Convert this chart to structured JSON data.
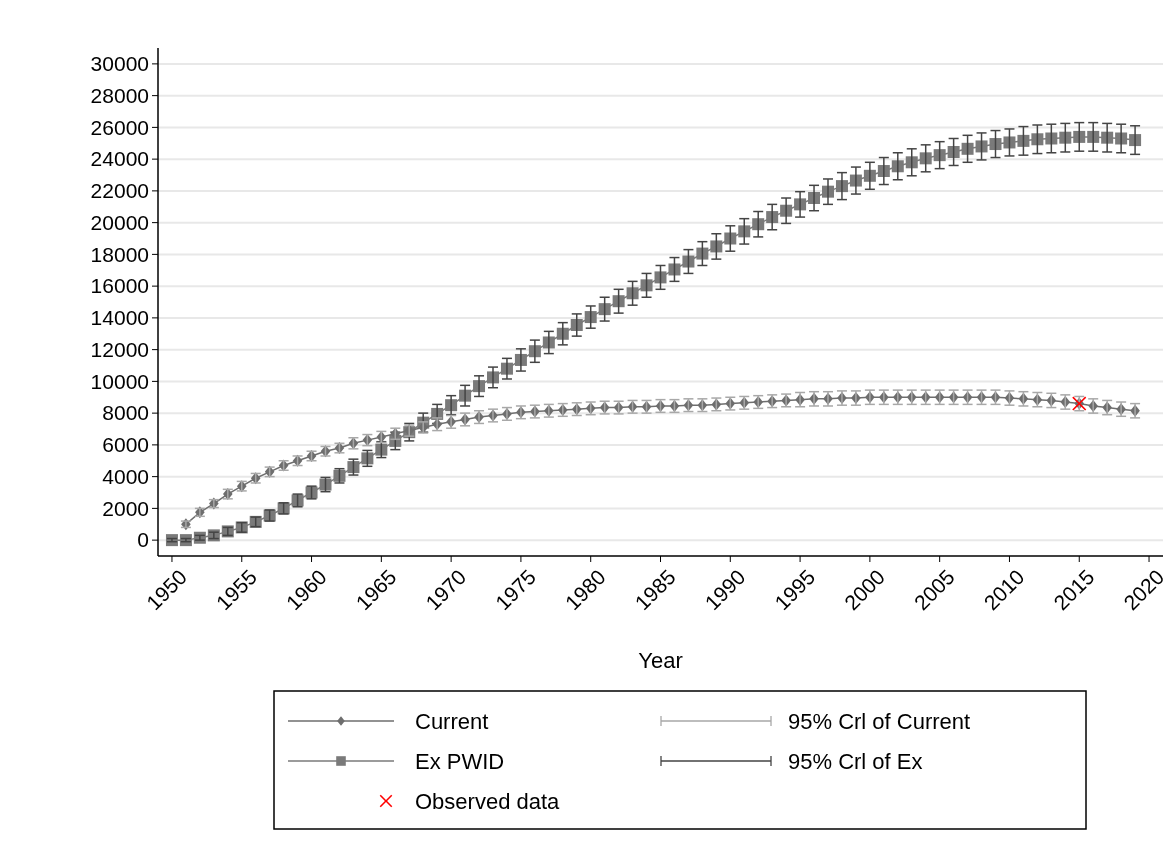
{
  "chart_data": {
    "type": "line",
    "xlabel": "Year",
    "xlim": [
      1949,
      2021
    ],
    "xticks": [
      1950,
      1955,
      1960,
      1965,
      1970,
      1975,
      1980,
      1985,
      1990,
      1995,
      2000,
      2005,
      2010,
      2015,
      2020
    ],
    "ylim": [
      -1000,
      31000
    ],
    "yticks": [
      0,
      2000,
      4000,
      6000,
      8000,
      10000,
      12000,
      14000,
      16000,
      18000,
      20000,
      22000,
      24000,
      26000,
      28000,
      30000
    ],
    "grid": "y",
    "legend": "bottom",
    "annotations": [
      "95% Crl of Current",
      "95% Crl of Ex"
    ],
    "series": [
      {
        "name": "Current",
        "color": "#6e6e6e",
        "marker": "diamond",
        "x": [
          1951,
          1952,
          1953,
          1954,
          1955,
          1956,
          1957,
          1958,
          1959,
          1960,
          1961,
          1962,
          1963,
          1964,
          1965,
          1966,
          1967,
          1968,
          1969,
          1970,
          1971,
          1972,
          1973,
          1974,
          1975,
          1976,
          1977,
          1978,
          1979,
          1980,
          1981,
          1982,
          1983,
          1984,
          1985,
          1986,
          1987,
          1988,
          1989,
          1990,
          1991,
          1992,
          1993,
          1994,
          1995,
          1996,
          1997,
          1998,
          1999,
          2000,
          2001,
          2002,
          2003,
          2004,
          2005,
          2006,
          2007,
          2008,
          2009,
          2010,
          2011,
          2012,
          2013,
          2014,
          2015,
          2016,
          2017,
          2018,
          2019
        ],
        "values": [
          1000,
          1750,
          2300,
          2900,
          3400,
          3900,
          4300,
          4700,
          5000,
          5300,
          5600,
          5800,
          6100,
          6300,
          6500,
          6700,
          6900,
          7100,
          7300,
          7450,
          7600,
          7750,
          7850,
          7950,
          8050,
          8100,
          8150,
          8200,
          8250,
          8300,
          8350,
          8350,
          8400,
          8400,
          8450,
          8450,
          8500,
          8500,
          8550,
          8600,
          8650,
          8700,
          8750,
          8800,
          8850,
          8900,
          8900,
          8950,
          8950,
          9000,
          9000,
          9000,
          9000,
          9000,
          9000,
          9000,
          9000,
          9000,
          9000,
          8950,
          8900,
          8850,
          8800,
          8700,
          8600,
          8450,
          8350,
          8250,
          8150
        ],
        "errors": [
          200,
          250,
          250,
          300,
          300,
          300,
          300,
          300,
          300,
          300,
          300,
          300,
          350,
          350,
          350,
          350,
          350,
          350,
          400,
          400,
          400,
          400,
          400,
          400,
          400,
          400,
          400,
          400,
          400,
          400,
          400,
          400,
          400,
          400,
          400,
          400,
          400,
          400,
          400,
          400,
          400,
          400,
          400,
          400,
          450,
          450,
          450,
          450,
          450,
          450,
          450,
          450,
          450,
          450,
          450,
          450,
          450,
          450,
          450,
          450,
          450,
          450,
          450,
          450,
          450,
          450,
          450,
          450,
          450
        ]
      },
      {
        "name": "Ex PWID",
        "color": "#7a7a7a",
        "marker": "square",
        "x": [
          1950,
          1951,
          1952,
          1953,
          1954,
          1955,
          1956,
          1957,
          1958,
          1959,
          1960,
          1961,
          1962,
          1963,
          1964,
          1965,
          1966,
          1967,
          1968,
          1969,
          1970,
          1971,
          1972,
          1973,
          1974,
          1975,
          1976,
          1977,
          1978,
          1979,
          1980,
          1981,
          1982,
          1983,
          1984,
          1985,
          1986,
          1987,
          1988,
          1989,
          1990,
          1991,
          1992,
          1993,
          1994,
          1995,
          1996,
          1997,
          1998,
          1999,
          2000,
          2001,
          2002,
          2003,
          2004,
          2005,
          2006,
          2007,
          2008,
          2009,
          2010,
          2011,
          2012,
          2013,
          2014,
          2015,
          2016,
          2017,
          2018,
          2019
        ],
        "values": [
          0,
          0,
          150,
          300,
          550,
          800,
          1150,
          1550,
          2000,
          2500,
          3000,
          3500,
          4050,
          4600,
          5150,
          5700,
          6250,
          6800,
          7400,
          7950,
          8500,
          9100,
          9700,
          10250,
          10800,
          11350,
          11900,
          12450,
          13000,
          13550,
          14050,
          14550,
          15050,
          15550,
          16050,
          16550,
          17050,
          17550,
          18050,
          18500,
          19000,
          19450,
          19900,
          20350,
          20750,
          21150,
          21550,
          21950,
          22300,
          22650,
          22950,
          23250,
          23550,
          23800,
          24050,
          24250,
          24450,
          24650,
          24800,
          24950,
          25050,
          25150,
          25250,
          25300,
          25350,
          25400,
          25400,
          25350,
          25300,
          25200
        ],
        "errors": [
          100,
          100,
          150,
          200,
          250,
          300,
          300,
          350,
          350,
          400,
          400,
          450,
          450,
          500,
          500,
          500,
          550,
          550,
          600,
          600,
          600,
          650,
          650,
          650,
          650,
          700,
          700,
          700,
          700,
          700,
          700,
          750,
          750,
          750,
          750,
          750,
          750,
          750,
          750,
          800,
          800,
          800,
          800,
          800,
          800,
          800,
          800,
          800,
          850,
          850,
          850,
          850,
          850,
          850,
          850,
          850,
          850,
          850,
          850,
          850,
          850,
          900,
          900,
          900,
          900,
          900,
          900,
          900,
          900,
          900
        ]
      },
      {
        "name": "Observed data",
        "type": "scatter",
        "color": "#ff0000",
        "marker": "cross",
        "x": [
          2015
        ],
        "values": [
          8600
        ]
      }
    ]
  }
}
